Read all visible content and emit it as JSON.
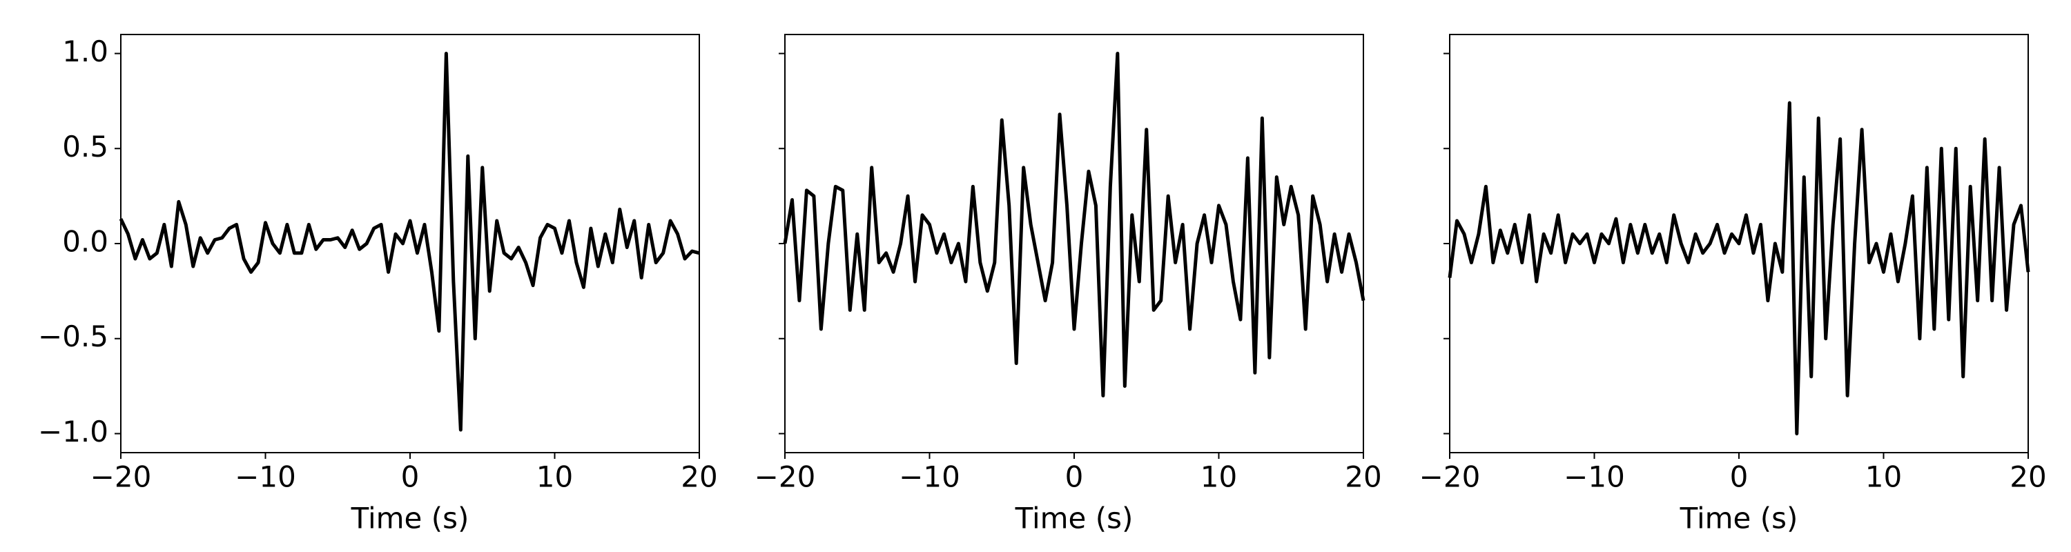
{
  "chart_data": [
    {
      "type": "line",
      "xlabel": "Time (s)",
      "color": "#000000",
      "xlim": [
        -20,
        20
      ],
      "ylim": [
        -1.1,
        1.1
      ],
      "xticks": [
        {
          "value": -20,
          "label": "−20"
        },
        {
          "value": -10,
          "label": "−10"
        },
        0,
        10,
        20
      ],
      "yticks": [
        {
          "value": -1.0,
          "label": "−1.0"
        },
        {
          "value": -0.5,
          "label": "−0.5"
        },
        {
          "value": 0.0,
          "label": "0.0"
        },
        {
          "value": 0.5,
          "label": "0.5"
        },
        {
          "value": 1.0,
          "label": "1.0"
        }
      ],
      "x": [
        -20,
        -19.5,
        -19,
        -18.5,
        -18,
        -17.5,
        -17,
        -16.5,
        -16,
        -15.5,
        -15,
        -14.5,
        -14,
        -13.5,
        -13,
        -12.5,
        -12,
        -11.5,
        -11,
        -10.5,
        -10,
        -9.5,
        -9,
        -8.5,
        -8,
        -7.5,
        -7,
        -6.5,
        -6,
        -5.5,
        -5,
        -4.5,
        -4,
        -3.5,
        -3,
        -2.5,
        -2,
        -1.5,
        -1,
        -0.5,
        0,
        0.5,
        1,
        1.5,
        2,
        2.5,
        3,
        3.5,
        4,
        4.5,
        5,
        5.5,
        6,
        6.5,
        7,
        7.5,
        8,
        8.5,
        9,
        9.5,
        10,
        10.5,
        11,
        11.5,
        12,
        12.5,
        13,
        13.5,
        14,
        14.5,
        15,
        15.5,
        16,
        16.5,
        17,
        17.5,
        18,
        18.5,
        19,
        19.5,
        20
      ],
      "values": [
        0.13,
        0.05,
        -0.08,
        0.02,
        -0.08,
        -0.05,
        0.1,
        -0.12,
        0.22,
        0.1,
        -0.12,
        0.03,
        -0.05,
        0.02,
        0.03,
        0.08,
        0.1,
        -0.08,
        -0.15,
        -0.1,
        0.11,
        0.0,
        -0.05,
        0.1,
        -0.05,
        -0.05,
        0.1,
        -0.03,
        0.02,
        0.02,
        0.03,
        -0.02,
        0.07,
        -0.03,
        0.0,
        0.08,
        0.1,
        -0.15,
        0.05,
        0.0,
        0.12,
        -0.05,
        0.1,
        -0.15,
        -0.46,
        1.0,
        -0.2,
        -0.98,
        0.46,
        -0.5,
        0.4,
        -0.25,
        0.12,
        -0.05,
        -0.08,
        -0.02,
        -0.1,
        -0.22,
        0.03,
        0.1,
        0.08,
        -0.05,
        0.12,
        -0.1,
        -0.23,
        0.08,
        -0.12,
        0.05,
        -0.1,
        0.18,
        -0.02,
        0.12,
        -0.18,
        0.1,
        -0.1,
        -0.05,
        0.12,
        0.05,
        -0.08,
        -0.04,
        -0.05
      ]
    },
    {
      "type": "line",
      "xlabel": "Time (s)",
      "color": "#000000",
      "sharey": true,
      "xlim": [
        -20,
        20
      ],
      "xticks": [
        {
          "value": -20,
          "label": "−20"
        },
        {
          "value": -10,
          "label": "−10"
        },
        0,
        10,
        20
      ],
      "x": [
        -20,
        -19.5,
        -19,
        -18.5,
        -18,
        -17.5,
        -17,
        -16.5,
        -16,
        -15.5,
        -15,
        -14.5,
        -14,
        -13.5,
        -13,
        -12.5,
        -12,
        -11.5,
        -11,
        -10.5,
        -10,
        -9.5,
        -9,
        -8.5,
        -8,
        -7.5,
        -7,
        -6.5,
        -6,
        -5.5,
        -5,
        -4.5,
        -4,
        -3.5,
        -3,
        -2.5,
        -2,
        -1.5,
        -1,
        -0.5,
        0,
        0.5,
        1,
        1.5,
        2,
        2.5,
        3,
        3.5,
        4,
        4.5,
        5,
        5.5,
        6,
        6.5,
        7,
        7.5,
        8,
        8.5,
        9,
        9.5,
        10,
        10.5,
        11,
        11.5,
        12,
        12.5,
        13,
        13.5,
        14,
        14.5,
        15,
        15.5,
        16,
        16.5,
        17,
        17.5,
        18,
        18.5,
        19,
        19.5,
        20
      ],
      "values": [
        0.0,
        0.23,
        -0.3,
        0.28,
        0.25,
        -0.45,
        0.0,
        0.3,
        0.28,
        -0.35,
        0.05,
        -0.35,
        0.4,
        -0.1,
        -0.05,
        -0.15,
        0.0,
        0.25,
        -0.2,
        0.15,
        0.1,
        -0.05,
        0.05,
        -0.1,
        0.0,
        -0.2,
        0.3,
        -0.1,
        -0.25,
        -0.1,
        0.65,
        0.2,
        -0.63,
        0.4,
        0.1,
        -0.1,
        -0.3,
        -0.1,
        0.68,
        0.2,
        -0.45,
        0.0,
        0.38,
        0.2,
        -0.8,
        0.3,
        1.0,
        -0.75,
        0.15,
        -0.2,
        0.6,
        -0.35,
        -0.3,
        0.25,
        -0.1,
        0.1,
        -0.45,
        0.0,
        0.15,
        -0.1,
        0.2,
        0.1,
        -0.2,
        -0.4,
        0.45,
        -0.68,
        0.66,
        -0.6,
        0.35,
        0.1,
        0.3,
        0.15,
        -0.45,
        0.25,
        0.1,
        -0.2,
        0.05,
        -0.15,
        0.05,
        -0.1,
        -0.3
      ]
    },
    {
      "type": "line",
      "xlabel": "Time (s)",
      "color": "#000000",
      "sharey": true,
      "xlim": [
        -20,
        20
      ],
      "xticks": [
        {
          "value": -20,
          "label": "−20"
        },
        {
          "value": -10,
          "label": "−10"
        },
        0,
        10,
        20
      ],
      "x": [
        -20,
        -19.5,
        -19,
        -18.5,
        -18,
        -17.5,
        -17,
        -16.5,
        -16,
        -15.5,
        -15,
        -14.5,
        -14,
        -13.5,
        -13,
        -12.5,
        -12,
        -11.5,
        -11,
        -10.5,
        -10,
        -9.5,
        -9,
        -8.5,
        -8,
        -7.5,
        -7,
        -6.5,
        -6,
        -5.5,
        -5,
        -4.5,
        -4,
        -3.5,
        -3,
        -2.5,
        -2,
        -1.5,
        -1,
        -0.5,
        0,
        0.5,
        1,
        1.5,
        2,
        2.5,
        3,
        3.5,
        4,
        4.5,
        5,
        5.5,
        6,
        6.5,
        7,
        7.5,
        8,
        8.5,
        9,
        9.5,
        10,
        10.5,
        11,
        11.5,
        12,
        12.5,
        13,
        13.5,
        14,
        14.5,
        15,
        15.5,
        16,
        16.5,
        17,
        17.5,
        18,
        18.5,
        19,
        19.5,
        20
      ],
      "values": [
        -0.18,
        0.12,
        0.05,
        -0.1,
        0.05,
        0.3,
        -0.1,
        0.07,
        -0.05,
        0.1,
        -0.1,
        0.15,
        -0.2,
        0.05,
        -0.05,
        0.15,
        -0.1,
        0.05,
        0.0,
        0.05,
        -0.1,
        0.05,
        0.0,
        0.13,
        -0.1,
        0.1,
        -0.05,
        0.1,
        -0.05,
        0.05,
        -0.1,
        0.15,
        0.0,
        -0.1,
        0.05,
        -0.05,
        0.0,
        0.1,
        -0.05,
        0.05,
        0.0,
        0.15,
        -0.05,
        0.1,
        -0.3,
        0.0,
        -0.15,
        0.74,
        -1.0,
        0.35,
        -0.7,
        0.66,
        -0.5,
        0.1,
        0.55,
        -0.8,
        0.0,
        0.6,
        -0.1,
        0.0,
        -0.15,
        0.05,
        -0.2,
        0.0,
        0.25,
        -0.5,
        0.4,
        -0.45,
        0.5,
        -0.4,
        0.5,
        -0.7,
        0.3,
        -0.3,
        0.55,
        -0.3,
        0.4,
        -0.35,
        0.1,
        0.2,
        -0.15
      ]
    }
  ]
}
